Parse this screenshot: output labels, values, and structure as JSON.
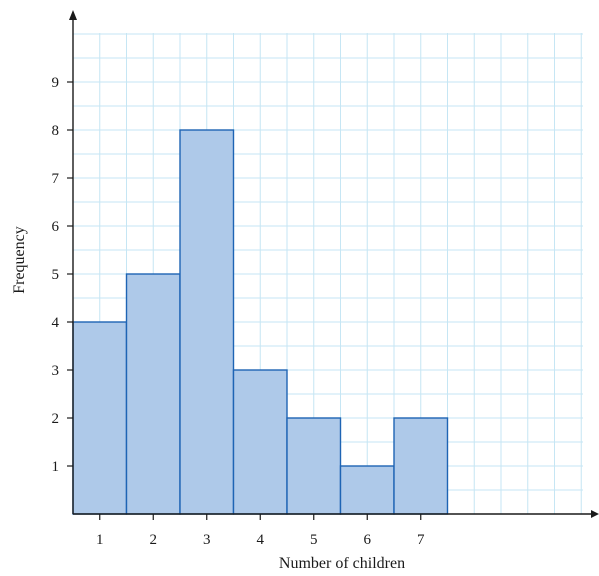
{
  "chart_data": {
    "type": "bar",
    "title": "",
    "xlabel": "Number of children",
    "ylabel": "Frequency",
    "categories": [
      "1",
      "2",
      "3",
      "4",
      "5",
      "6",
      "7"
    ],
    "values": [
      4,
      5,
      8,
      3,
      2,
      1,
      2
    ],
    "x_ticks": [
      "1",
      "2",
      "3",
      "4",
      "5",
      "6",
      "7"
    ],
    "y_ticks": [
      "1",
      "2",
      "3",
      "4",
      "5",
      "6",
      "7",
      "8",
      "9"
    ],
    "xlim": [
      0.5,
      10
    ],
    "ylim": [
      0,
      10
    ],
    "grid": true,
    "minor_grid_step": 0.5,
    "legend": "none",
    "colors": {
      "bar_fill": "#aec9e9",
      "bar_stroke": "#1e64b4",
      "grid": "#c6e6f4",
      "axis": "#1a1a1a"
    }
  }
}
